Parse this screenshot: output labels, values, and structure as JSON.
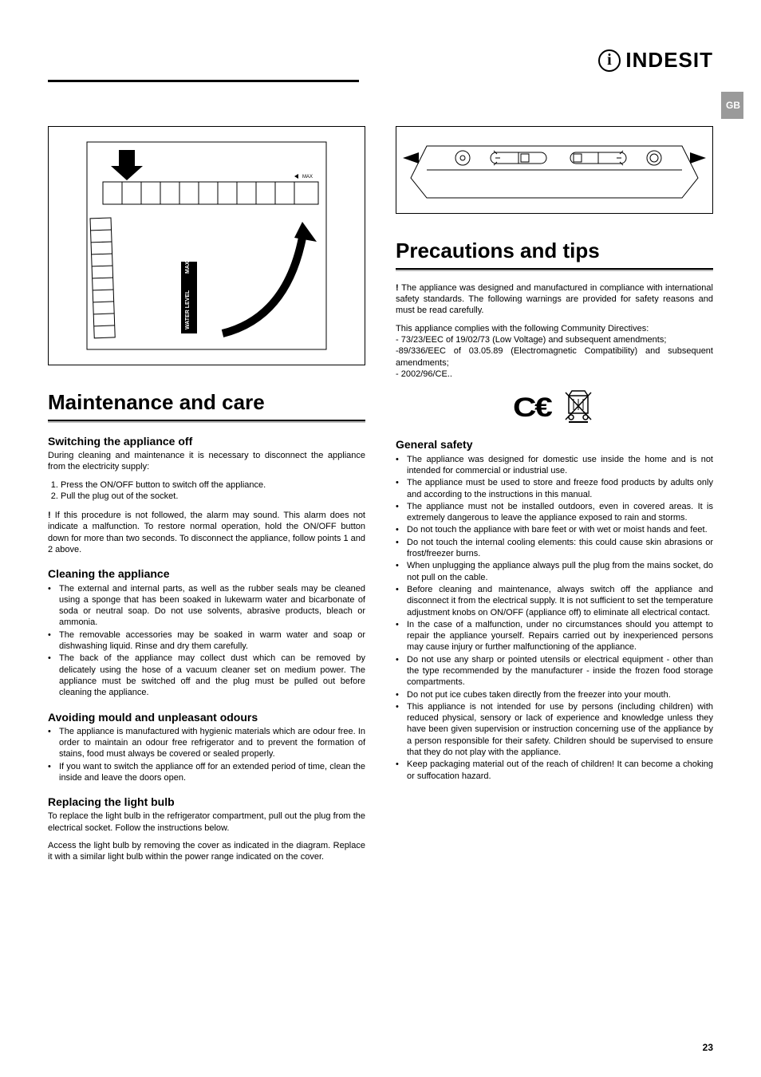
{
  "logo_text": "INDESIT",
  "side_tab": "GB",
  "page_number": "23",
  "left": {
    "h1": "Maintenance and care",
    "s1_h": "Switching the appliance off",
    "s1_p1": "During cleaning and maintenance it is necessary to disconnect the appliance from the electricity supply:",
    "s1_li1": "Press the ON/OFF button to switch off the appliance.",
    "s1_li2": "Pull the plug out of the socket.",
    "s1_p2": "If this procedure is not followed, the alarm may sound. This alarm does not indicate a malfunction. To restore normal operation, hold the ON/OFF button down for more than two seconds. To disconnect the appliance, follow points 1 and 2 above.",
    "s2_h": "Cleaning the appliance",
    "s2_li1": "The external and internal parts, as well as the rubber seals may be cleaned using a sponge that has been soaked in lukewarm water and bicarbonate of soda or neutral soap. Do not use solvents, abrasive products, bleach or ammonia.",
    "s2_li2": "The removable accessories may be soaked in warm water and soap or dishwashing liquid. Rinse and dry them carefully.",
    "s2_li3": "The back of the appliance may collect dust which can be removed by delicately using the hose of a vacuum cleaner set on medium power. The appliance must be switched off and the plug must be pulled out before cleaning the appliance.",
    "s3_h": "Avoiding mould and unpleasant odours",
    "s3_li1": "The appliance is manufactured with hygienic materials which are odour free. In order to maintain an odour free refrigerator and to prevent the formation of stains, food must always be covered or sealed properly.",
    "s3_li2": "If you want to switch the appliance off for an extended period of time, clean the inside and leave the doors open.",
    "s4_h": "Replacing the light bulb",
    "s4_p1": "To replace the light bulb in the refrigerator compartment, pull out the plug from the electrical socket. Follow the instructions below.",
    "s4_p2": "Access the light bulb by removing the cover as indicated in the diagram. Replace it with a similar light bulb within the power range indicated on the cover."
  },
  "right": {
    "h1": "Precautions and tips",
    "p1": "The appliance was designed and manufactured in compliance with international safety standards. The following warnings are provided for safety reasons and must be read carefully.",
    "p2": "This appliance complies with the following Community Directives:",
    "p3": "- 73/23/EEC of 19/02/73 (Low Voltage) and subsequent amendments;",
    "p4": "-89/336/EEC of 03.05.89 (Electromagnetic Compatibility) and subsequent amendments;",
    "p5": "- 2002/96/CE..",
    "gs_h": "General safety",
    "gs": [
      "The appliance was designed for domestic use inside the home and is not intended for commercial or industrial use.",
      "The appliance must be used to store and freeze food products by adults only and according to the instructions in this manual.",
      "The appliance must not be installed outdoors, even in covered areas. It is extremely dangerous to leave the appliance exposed to rain and storms.",
      "Do not touch the appliance with bare feet or with wet or moist hands and feet.",
      "Do not touch the internal cooling elements: this could cause skin abrasions or frost/freezer burns.",
      "When unplugging the appliance always pull the plug from the mains socket, do not pull on the cable.",
      "Before cleaning and maintenance, always switch off the appliance and disconnect it from the electrical supply. It is not sufficient to set the temperature adjustment knobs on ON/OFF (appliance off) to eliminate all electrical contact.",
      "In the case of a malfunction, under no circumstances should you attempt to repair the appliance yourself. Repairs carried out by inexperienced persons may cause injury or further malfunctioning of the appliance.",
      "Do not use any sharp or pointed utensils or electrical equipment - other than the type recommended by the manufacturer - inside the frozen food storage compartments.",
      "Do not put ice cubes taken directly from the freezer into your mouth.",
      "This appliance is not intended for use by persons (including children) with reduced physical, sensory or lack of experience and knowledge unless they have been given supervision or instruction concerning use of the appliance by a person responsible for their safety. Children should be supervised to ensure that they do not play with the appliance.",
      "Keep packaging material out of the reach of children! It can become a choking or suffocation hazard."
    ]
  }
}
